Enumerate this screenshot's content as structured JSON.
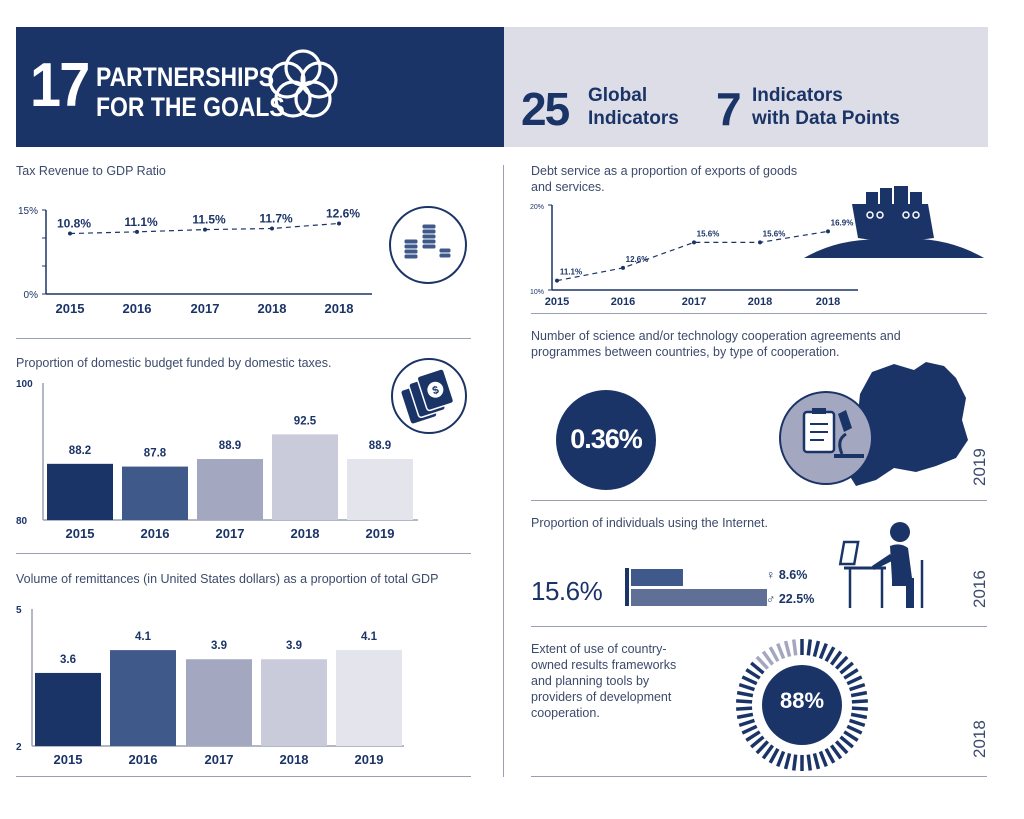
{
  "header": {
    "goal_number": "17",
    "goal_title_line1": "PARTNERSHIPS",
    "goal_title_line2": "FOR THE GOALS",
    "global_count": "25",
    "global_label_line1": "Global",
    "global_label_line2": "Indicators",
    "data_count": "7",
    "data_label_line1": "Indicators",
    "data_label_line2": "with Data Points",
    "colors": {
      "navy": "#1b3467",
      "light": "#dcdde6"
    }
  },
  "chart_data": [
    {
      "id": "tax",
      "type": "line",
      "title": "Tax Revenue to GDP Ratio",
      "categories": [
        "2015",
        "2016",
        "2017",
        "2018",
        "2018"
      ],
      "values": [
        10.8,
        11.1,
        11.5,
        11.7,
        12.6
      ],
      "labels": [
        "10.8%",
        "11.1%",
        "11.5%",
        "11.7%",
        "12.6%"
      ],
      "ylim": [
        0,
        15
      ],
      "yticks": [
        "15%",
        "0%"
      ],
      "icon": "coins-icon"
    },
    {
      "id": "budget",
      "type": "bar",
      "title": "Proportion of domestic budget funded by domestic taxes.",
      "categories": [
        "2015",
        "2016",
        "2017",
        "2018",
        "2019"
      ],
      "values": [
        88.2,
        87.8,
        88.9,
        92.5,
        88.9
      ],
      "labels": [
        "88.2",
        "87.8",
        "88.9",
        "92.5",
        "88.9"
      ],
      "ylim": [
        80,
        100
      ],
      "yticks": [
        "100",
        "80"
      ],
      "colors": [
        "#1b3467",
        "#3f5a8a",
        "#a3a8c0",
        "#c9cbda",
        "#e3e4ec"
      ],
      "icon": "money-icon"
    },
    {
      "id": "remit",
      "type": "bar",
      "title": "Volume of remittances (in United States dollars) as a proportion of total GDP",
      "categories": [
        "2015",
        "2016",
        "2017",
        "2018",
        "2019"
      ],
      "values": [
        3.6,
        4.1,
        3.9,
        3.9,
        4.1
      ],
      "labels": [
        "3.6",
        "4.1",
        "3.9",
        "3.9",
        "4.1"
      ],
      "ylim": [
        2,
        5
      ],
      "yticks": [
        "5",
        "2"
      ],
      "colors": [
        "#1b3467",
        "#3f5a8a",
        "#a3a8c0",
        "#c9cbda",
        "#e3e4ec"
      ]
    },
    {
      "id": "debt",
      "type": "line",
      "title": "Debt service as a proportion of exports of goods and services.",
      "categories": [
        "2015",
        "2016",
        "2017",
        "2018",
        "2018"
      ],
      "values": [
        11.1,
        12.6,
        15.6,
        15.6,
        16.9
      ],
      "labels": [
        "11.1%",
        "12.6%",
        "15.6%",
        "15.6%",
        "16.9%"
      ],
      "ylim": [
        10,
        20
      ],
      "yticks": [
        "20%",
        "10%"
      ],
      "icon": "ship-icon"
    }
  ],
  "science": {
    "title": "Number of science and/or technology cooperation agreements and programmes between countries, by type of cooperation.",
    "value": "0.36%",
    "year": "2019"
  },
  "internet": {
    "title": "Proportion of individuals using the Internet.",
    "total": "15.6%",
    "female_label": "8.6%",
    "male_label": "22.5%",
    "female_value": 8.6,
    "male_value": 22.5,
    "year": "2016"
  },
  "frameworks": {
    "title_lines": [
      "Extent of use of country-",
      "owned results frameworks",
      "and planning tools by",
      "providers of development",
      "cooperation."
    ],
    "value": "88%",
    "percent": 88,
    "year": "2018"
  }
}
